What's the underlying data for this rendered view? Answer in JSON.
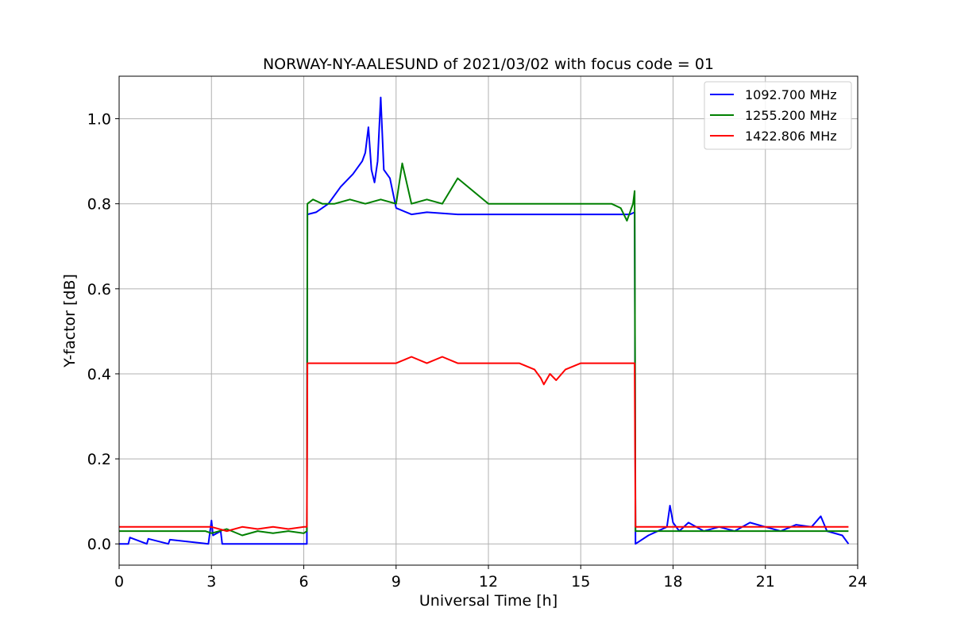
{
  "chart_data": {
    "type": "line",
    "title": "NORWAY-NY-AALESUND of 2021/03/02 with focus code = 01",
    "xlabel": "Universal Time [h]",
    "ylabel": "Y-factor [dB]",
    "xlim": [
      0,
      24
    ],
    "ylim": [
      -0.05,
      1.1
    ],
    "x_ticks": [
      0,
      3,
      6,
      9,
      12,
      15,
      18,
      21,
      24
    ],
    "y_ticks": [
      0.0,
      0.2,
      0.4,
      0.6,
      0.8,
      1.0
    ],
    "grid": true,
    "legend_position": "top-right",
    "series": [
      {
        "name": "1092.700 MHz",
        "color": "#0000ff",
        "x": [
          0,
          0.3,
          0.35,
          0.9,
          0.95,
          1.6,
          1.65,
          2.9,
          3.0,
          3.05,
          3.3,
          3.35,
          6.1,
          6.12,
          6.4,
          6.8,
          7.2,
          7.6,
          7.9,
          8.0,
          8.1,
          8.2,
          8.3,
          8.4,
          8.5,
          8.6,
          8.8,
          9.0,
          9.5,
          10.0,
          11.0,
          12.0,
          13.0,
          14.0,
          15.0,
          16.0,
          16.6,
          16.75,
          16.78,
          17.2,
          17.8,
          17.9,
          18.0,
          18.2,
          18.5,
          19.0,
          19.5,
          20.0,
          20.5,
          21.0,
          21.5,
          22.0,
          22.5,
          22.8,
          23.0,
          23.5,
          23.7
        ],
        "y": [
          0.0,
          0.0,
          0.015,
          0.0,
          0.012,
          0.0,
          0.01,
          0.0,
          0.055,
          0.02,
          0.03,
          0.0,
          0.0,
          0.775,
          0.78,
          0.8,
          0.84,
          0.87,
          0.9,
          0.92,
          0.98,
          0.88,
          0.85,
          0.9,
          1.05,
          0.88,
          0.86,
          0.79,
          0.775,
          0.78,
          0.775,
          0.775,
          0.775,
          0.775,
          0.775,
          0.775,
          0.775,
          0.78,
          0.0,
          0.02,
          0.04,
          0.09,
          0.05,
          0.03,
          0.05,
          0.03,
          0.04,
          0.03,
          0.05,
          0.04,
          0.03,
          0.045,
          0.04,
          0.065,
          0.03,
          0.02,
          0.0
        ]
      },
      {
        "name": "1255.200 MHz",
        "color": "#008000",
        "x": [
          0,
          2.8,
          3.0,
          3.5,
          4.0,
          4.5,
          5.0,
          5.5,
          6.0,
          6.1,
          6.12,
          6.3,
          6.6,
          7.0,
          7.5,
          8.0,
          8.5,
          9.0,
          9.2,
          9.5,
          10.0,
          10.5,
          11.0,
          12.0,
          13.0,
          14.0,
          15.0,
          16.0,
          16.3,
          16.5,
          16.7,
          16.75,
          16.78,
          17.0,
          18.0,
          20.0,
          22.0,
          23.0,
          23.7
        ],
        "y": [
          0.03,
          0.03,
          0.025,
          0.035,
          0.02,
          0.03,
          0.025,
          0.03,
          0.025,
          0.03,
          0.8,
          0.81,
          0.8,
          0.8,
          0.81,
          0.8,
          0.81,
          0.8,
          0.895,
          0.8,
          0.81,
          0.8,
          0.86,
          0.8,
          0.8,
          0.8,
          0.8,
          0.8,
          0.79,
          0.76,
          0.8,
          0.83,
          0.03,
          0.03,
          0.03,
          0.03,
          0.03,
          0.03,
          0.03
        ]
      },
      {
        "name": "1422.806 MHz",
        "color": "#ff0000",
        "x": [
          0,
          3.0,
          3.5,
          4.0,
          4.5,
          5.0,
          5.5,
          6.0,
          6.1,
          6.12,
          7.0,
          8.0,
          9.0,
          9.5,
          10.0,
          10.5,
          11.0,
          12.0,
          13.0,
          13.5,
          13.7,
          13.8,
          14.0,
          14.2,
          14.5,
          15.0,
          16.0,
          16.75,
          16.78,
          18.0,
          20.0,
          22.0,
          23.0,
          23.7
        ],
        "y": [
          0.04,
          0.04,
          0.03,
          0.04,
          0.035,
          0.04,
          0.035,
          0.04,
          0.04,
          0.425,
          0.425,
          0.425,
          0.425,
          0.44,
          0.425,
          0.44,
          0.425,
          0.425,
          0.425,
          0.41,
          0.39,
          0.375,
          0.4,
          0.385,
          0.41,
          0.425,
          0.425,
          0.425,
          0.04,
          0.04,
          0.04,
          0.04,
          0.04,
          0.04
        ]
      }
    ]
  }
}
